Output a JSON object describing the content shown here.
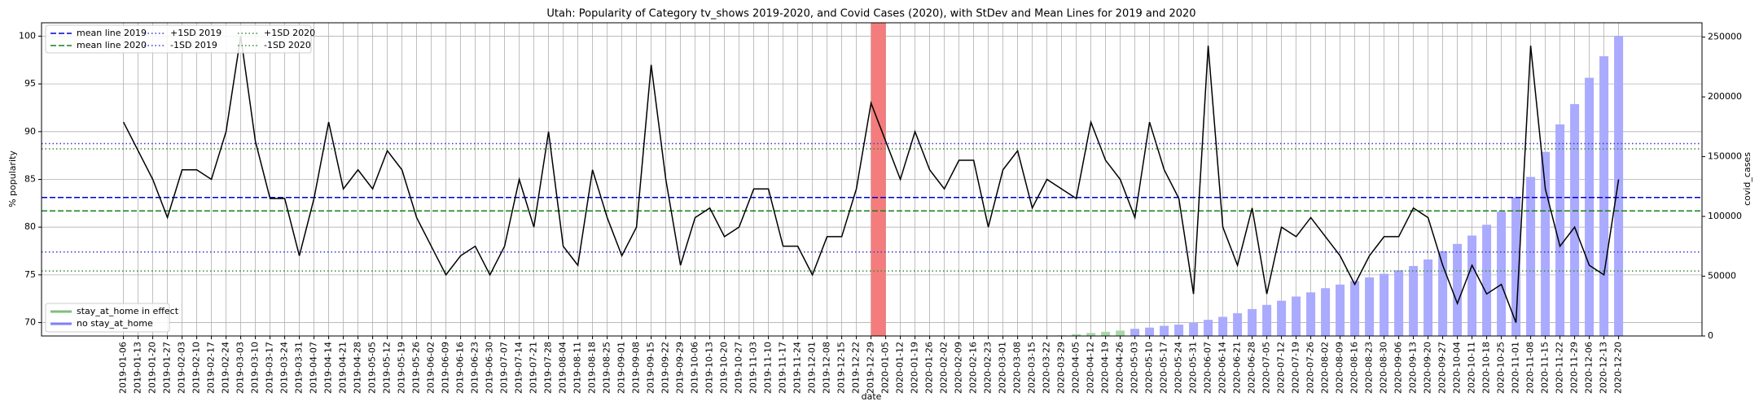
{
  "chart_data": {
    "type": "line",
    "title": "Utah: Popularity of Category tv_shows 2019-2020, and Covid Cases (2020), with StDev and Mean Lines for 2019 and 2020",
    "x_label": "date",
    "y_label": "% popularity",
    "y2_label": "covid_cases",
    "categories": [
      "2019-01-06",
      "2019-01-13",
      "2019-01-20",
      "2019-01-27",
      "2019-02-03",
      "2019-02-10",
      "2019-02-17",
      "2019-02-24",
      "2019-03-03",
      "2019-03-10",
      "2019-03-17",
      "2019-03-24",
      "2019-03-31",
      "2019-04-07",
      "2019-04-14",
      "2019-04-21",
      "2019-04-28",
      "2019-05-05",
      "2019-05-12",
      "2019-05-19",
      "2019-05-26",
      "2019-06-02",
      "2019-06-09",
      "2019-06-16",
      "2019-06-23",
      "2019-06-30",
      "2019-07-07",
      "2019-07-14",
      "2019-07-21",
      "2019-07-28",
      "2019-08-04",
      "2019-08-11",
      "2019-08-18",
      "2019-08-25",
      "2019-09-01",
      "2019-09-08",
      "2019-09-15",
      "2019-09-22",
      "2019-09-29",
      "2019-10-06",
      "2019-10-13",
      "2019-10-20",
      "2019-10-27",
      "2019-11-03",
      "2019-11-10",
      "2019-11-17",
      "2019-11-24",
      "2019-12-01",
      "2019-12-08",
      "2019-12-15",
      "2019-12-22",
      "2019-12-29",
      "2020-01-05",
      "2020-01-12",
      "2020-01-19",
      "2020-01-26",
      "2020-02-02",
      "2020-02-09",
      "2020-02-16",
      "2020-02-23",
      "2020-03-01",
      "2020-03-08",
      "2020-03-15",
      "2020-03-22",
      "2020-03-29",
      "2020-04-05",
      "2020-04-12",
      "2020-04-19",
      "2020-04-26",
      "2020-05-03",
      "2020-05-10",
      "2020-05-17",
      "2020-05-24",
      "2020-05-31",
      "2020-06-07",
      "2020-06-14",
      "2020-06-21",
      "2020-06-28",
      "2020-07-05",
      "2020-07-12",
      "2020-07-19",
      "2020-07-26",
      "2020-08-02",
      "2020-08-09",
      "2020-08-16",
      "2020-08-23",
      "2020-08-30",
      "2020-09-06",
      "2020-09-13",
      "2020-09-20",
      "2020-09-27",
      "2020-10-04",
      "2020-10-11",
      "2020-10-18",
      "2020-10-25",
      "2020-11-01",
      "2020-11-08",
      "2020-11-15",
      "2020-11-22",
      "2020-11-29",
      "2020-12-06",
      "2020-12-13",
      "2020-12-20"
    ],
    "series": [
      {
        "name": "% popularity",
        "type": "line",
        "color": "#000000",
        "values": [
          91,
          88,
          85,
          81,
          86,
          86,
          85,
          90,
          100,
          89,
          83,
          83,
          77,
          83,
          91,
          84,
          86,
          84,
          88,
          86,
          81,
          78,
          75,
          77,
          78,
          75,
          78,
          85,
          80,
          90,
          78,
          76,
          86,
          81,
          77,
          80,
          97,
          85,
          76,
          81,
          82,
          79,
          80,
          84,
          84,
          78,
          78,
          75,
          79,
          79,
          84,
          93,
          89,
          85,
          90,
          86,
          84,
          87,
          87,
          80,
          86,
          88,
          82,
          85,
          84,
          83,
          91,
          87,
          85,
          81,
          91,
          86,
          83,
          73,
          99,
          80,
          76,
          82,
          73,
          80,
          79,
          81,
          79,
          77,
          74,
          77,
          79,
          79,
          82,
          81,
          76,
          72,
          76,
          73,
          74,
          70,
          99,
          84,
          78,
          80,
          76,
          75,
          85
        ]
      },
      {
        "name": "covid_cases",
        "type": "bar",
        "axis": "y2",
        "color": "#aaaaff",
        "values": [
          null,
          null,
          null,
          null,
          null,
          null,
          null,
          null,
          null,
          null,
          null,
          null,
          null,
          null,
          null,
          null,
          null,
          null,
          null,
          null,
          null,
          null,
          null,
          null,
          null,
          null,
          null,
          null,
          null,
          null,
          null,
          null,
          null,
          null,
          null,
          null,
          null,
          null,
          null,
          null,
          null,
          null,
          null,
          null,
          null,
          null,
          null,
          null,
          null,
          null,
          null,
          null,
          null,
          null,
          null,
          null,
          null,
          null,
          null,
          null,
          null,
          null,
          null,
          null,
          500,
          1500,
          2500,
          3500,
          4500,
          6000,
          7000,
          8500,
          9500,
          11000,
          13500,
          16000,
          19000,
          22500,
          26000,
          29500,
          33000,
          36500,
          40000,
          43000,
          46000,
          49000,
          52000,
          55000,
          58500,
          64000,
          71000,
          77000,
          84000,
          93000,
          104000,
          116000,
          133000,
          154000,
          177000,
          194000,
          216000,
          234000,
          251000
        ]
      }
    ],
    "stay_at_home_weeks": [
      "2020-03-29",
      "2020-04-05",
      "2020-04-12",
      "2020-04-19",
      "2020-04-26"
    ],
    "stay_at_home_color": "#a8d8a8",
    "red_span": {
      "from": "2019-12-29",
      "to": "2020-01-05",
      "color": "#f47c7c"
    },
    "hlines": [
      {
        "name": "mean line 2019",
        "value": 83.1,
        "color": "#0000cc",
        "style": "dashed"
      },
      {
        "name": "mean line 2020",
        "value": 81.7,
        "color": "#1a7f1a",
        "style": "dashed"
      },
      {
        "name": "+1SD 2019",
        "value": 88.75,
        "color": "#3a3acc",
        "style": "dotted"
      },
      {
        "name": "-1SD 2019",
        "value": 77.4,
        "color": "#3a3acc",
        "style": "dotted"
      },
      {
        "name": "+1SD 2020",
        "value": 88.2,
        "color": "#3a8a3a",
        "style": "dotted"
      },
      {
        "name": "-1SD 2020",
        "value": 75.4,
        "color": "#3a8a3a",
        "style": "dotted"
      }
    ],
    "legend": "upper left",
    "bar_legend": {
      "position": "lower left",
      "entries": [
        {
          "name": "stay_at_home in effect",
          "color": "#7fbf7f"
        },
        {
          "name": "no stay_at_home",
          "color": "#7f7fff"
        }
      ]
    },
    "ylim": [
      68.6,
      101.4
    ],
    "yticks": [
      70,
      75,
      80,
      85,
      90,
      95,
      100
    ],
    "y2lim": [
      0,
      262000
    ],
    "y2ticks": [
      0,
      50000,
      100000,
      150000,
      200000,
      250000
    ],
    "grid": true
  }
}
